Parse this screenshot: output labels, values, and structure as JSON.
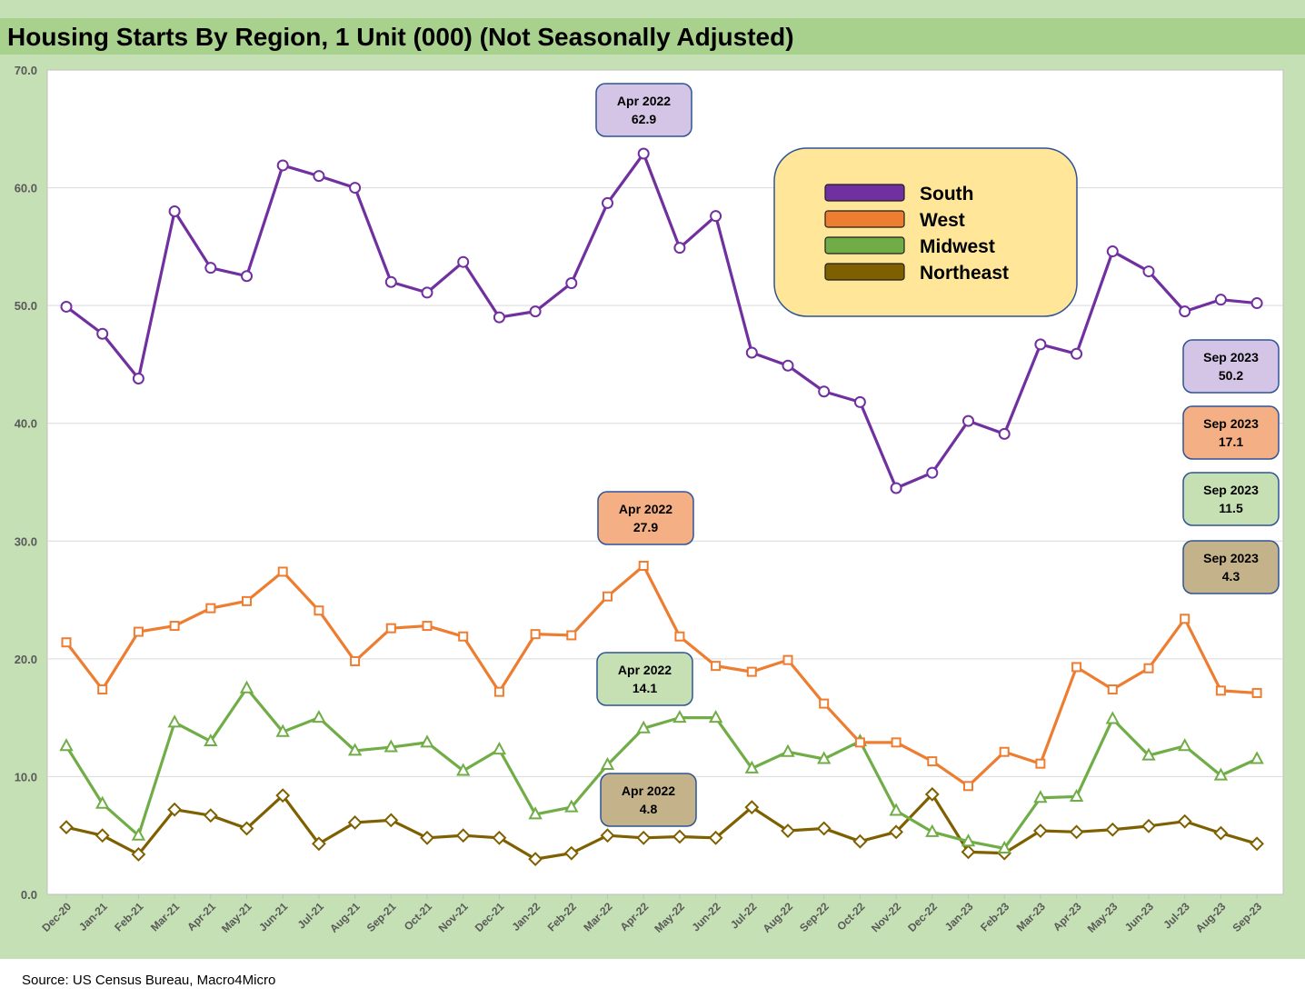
{
  "chart_data": {
    "type": "line",
    "title": "Housing Starts By Region, 1 Unit (000) (Not Seasonally Adjusted)",
    "source": "Source: US Census Bureau, Macro4Micro",
    "categories": [
      "Dec-20",
      "Jan-21",
      "Feb-21",
      "Mar-21",
      "Apr-21",
      "May-21",
      "Jun-21",
      "Jul-21",
      "Aug-21",
      "Sep-21",
      "Oct-21",
      "Nov-21",
      "Dec-21",
      "Jan-22",
      "Feb-22",
      "Mar-22",
      "Apr-22",
      "May-22",
      "Jun-22",
      "Jul-22",
      "Aug-22",
      "Sep-22",
      "Oct-22",
      "Nov-22",
      "Dec-22",
      "Jan-23",
      "Feb-23",
      "Mar-23",
      "Apr-23",
      "May-23",
      "Jun-23",
      "Jul-23",
      "Aug-23",
      "Sep-23"
    ],
    "ylim": [
      0,
      70
    ],
    "yticks": [
      "0.0",
      "10.0",
      "20.0",
      "30.0",
      "40.0",
      "50.0",
      "60.0",
      "70.0"
    ],
    "grid": true,
    "legend_placement": "top-right",
    "series": [
      {
        "name": "South",
        "color": "#7030a0",
        "fill": "#d4c4e6",
        "marker": "circle",
        "values": [
          49.9,
          47.6,
          43.8,
          58.0,
          53.2,
          52.5,
          61.9,
          61.0,
          60.0,
          52.0,
          51.1,
          53.7,
          49.0,
          49.5,
          51.9,
          58.7,
          62.9,
          54.9,
          57.6,
          46.0,
          44.9,
          42.7,
          41.8,
          34.5,
          35.8,
          40.2,
          39.1,
          46.7,
          45.9,
          54.6,
          52.9,
          49.5,
          50.5,
          50.2
        ]
      },
      {
        "name": "West",
        "color": "#ed7d31",
        "fill": "#f4b084",
        "marker": "square",
        "values": [
          21.4,
          17.4,
          22.3,
          22.8,
          24.3,
          24.9,
          27.4,
          24.1,
          19.8,
          22.6,
          22.8,
          21.9,
          17.2,
          22.1,
          22.0,
          25.3,
          27.9,
          21.9,
          19.4,
          18.9,
          19.9,
          16.2,
          12.9,
          12.9,
          11.3,
          9.2,
          12.1,
          11.1,
          19.3,
          17.4,
          19.2,
          23.4,
          17.3,
          17.1
        ]
      },
      {
        "name": "Midwest",
        "color": "#70ad47",
        "fill": "#c6e0b4",
        "marker": "triangle",
        "values": [
          12.6,
          7.7,
          5.0,
          14.6,
          13.0,
          17.5,
          13.8,
          15.0,
          12.2,
          12.5,
          12.9,
          10.5,
          12.3,
          6.8,
          7.4,
          11.0,
          14.1,
          15.0,
          15.0,
          10.7,
          12.1,
          11.5,
          13.0,
          7.1,
          5.3,
          4.5,
          3.9,
          8.2,
          8.3,
          14.9,
          11.8,
          12.6,
          10.1,
          11.5
        ]
      },
      {
        "name": "Northeast",
        "color": "#7f6000",
        "fill": "#c4b38a",
        "marker": "diamond",
        "values": [
          5.7,
          5.0,
          3.4,
          7.2,
          6.7,
          5.6,
          8.4,
          4.3,
          6.1,
          6.3,
          4.8,
          5.0,
          4.8,
          3.0,
          3.5,
          5.0,
          4.8,
          4.9,
          4.8,
          7.4,
          5.4,
          5.6,
          4.5,
          5.3,
          8.5,
          3.6,
          3.5,
          5.4,
          5.3,
          5.5,
          5.8,
          6.2,
          5.2,
          4.3
        ]
      }
    ],
    "callouts": [
      {
        "series": "South",
        "label": "Apr 2022",
        "value": "62.9"
      },
      {
        "series": "West",
        "label": "Apr 2022",
        "value": "27.9"
      },
      {
        "series": "Midwest",
        "label": "Apr 2022",
        "value": "14.1"
      },
      {
        "series": "Northeast",
        "label": "Apr 2022",
        "value": "4.8"
      },
      {
        "series": "South",
        "label": "Sep 2023",
        "value": "50.2"
      },
      {
        "series": "West",
        "label": "Sep 2023",
        "value": "17.1"
      },
      {
        "series": "Midwest",
        "label": "Sep 2023",
        "value": "11.5"
      },
      {
        "series": "Northeast",
        "label": "Sep 2023",
        "value": "4.3"
      }
    ],
    "colors": {
      "title_band": "#a9d18e",
      "frame": "#c5e0b4",
      "legend_bg": "#ffe699",
      "legend_border": "#2f5496",
      "callout_border": "#2f5496"
    }
  }
}
